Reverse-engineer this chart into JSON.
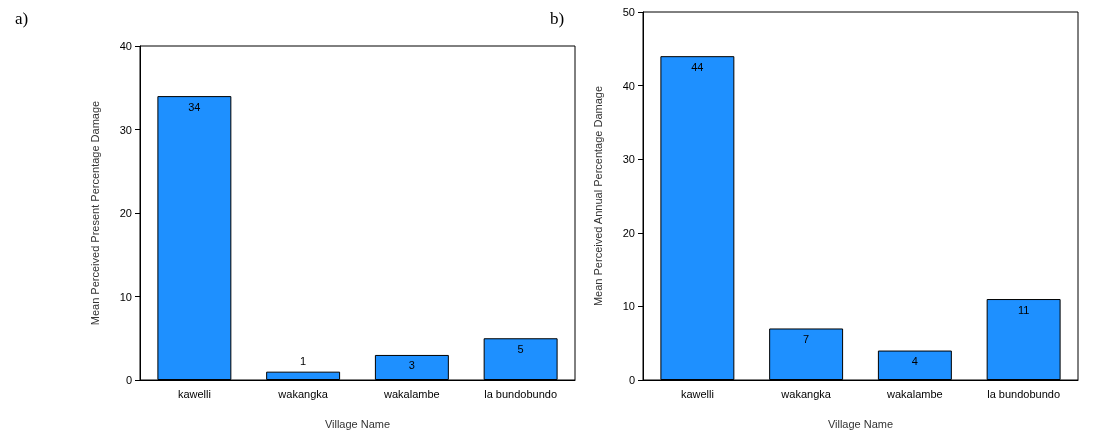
{
  "chart_data": [
    {
      "type": "bar",
      "annotations": [
        "a)"
      ],
      "xlabel": "Village Name",
      "ylabel": "Mean Perceived Present Percentage Damage",
      "categories": [
        "kawelli",
        "wakangka",
        "wakalambe",
        "la bundobundo"
      ],
      "values": [
        34,
        1,
        3,
        5
      ],
      "color": "#1e90ff",
      "ylim": [
        0,
        40
      ],
      "yticks": [
        0,
        10,
        20,
        30,
        40
      ],
      "data_labels": true,
      "grid": false
    },
    {
      "type": "bar",
      "annotations": [
        "b)"
      ],
      "xlabel": "Village Name",
      "ylabel": "Mean Perceived Annual Percentage Damage",
      "categories": [
        "kawelli",
        "wakangka",
        "wakalambe",
        "la bundobundo"
      ],
      "values": [
        44,
        7,
        4,
        11
      ],
      "color": "#1e90ff",
      "ylim": [
        0,
        50
      ],
      "yticks": [
        0,
        10,
        20,
        30,
        40,
        50
      ],
      "data_labels": true,
      "grid": false
    }
  ]
}
